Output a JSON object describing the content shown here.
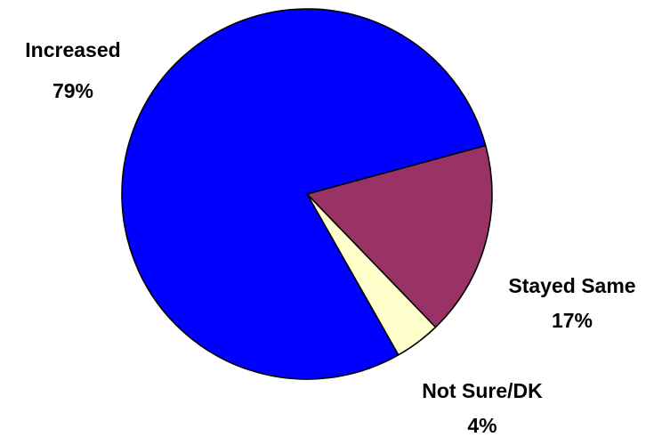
{
  "chart_data": {
    "type": "pie",
    "title": "",
    "slices": [
      {
        "label": "Increased",
        "value": 79,
        "value_label": "79%",
        "color": "#0000FF"
      },
      {
        "label": "Stayed Same",
        "value": 17,
        "value_label": "17%",
        "color": "#993366"
      },
      {
        "label": "Not Sure/DK",
        "value": 4,
        "value_label": "4%",
        "color": "#FFFFCC"
      }
    ],
    "legend": "none",
    "labels": "outside, category name above percentage"
  }
}
